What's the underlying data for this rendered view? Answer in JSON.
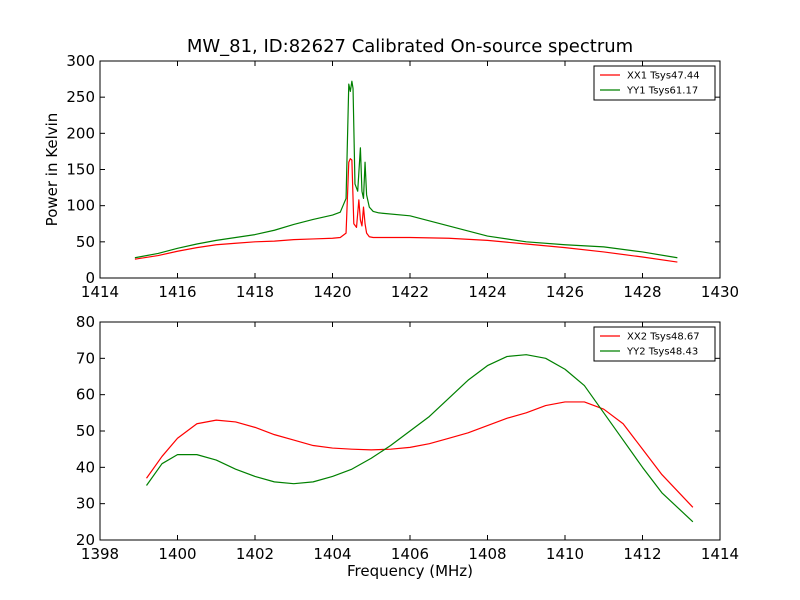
{
  "title": "MW_81, ID:82627 Calibrated On-source spectrum",
  "colors": {
    "xx": "#ff0000",
    "yy": "#008000",
    "axis": "#000000",
    "background": "#ffffff"
  },
  "chart_data": [
    {
      "type": "line",
      "title": "MW_81, ID:82627 Calibrated On-source spectrum",
      "xlabel": "",
      "ylabel": "Power in Kelvin",
      "xlim": [
        1414,
        1430
      ],
      "ylim": [
        0,
        300
      ],
      "xticks": [
        1414,
        1416,
        1418,
        1420,
        1422,
        1424,
        1426,
        1428,
        1430
      ],
      "yticks": [
        0,
        50,
        100,
        150,
        200,
        250,
        300
      ],
      "grid": false,
      "legend": "top-right",
      "series": [
        {
          "name": "XX1 Tsys47.44",
          "color": "#ff0000",
          "x": [
            1414.9,
            1415.5,
            1416,
            1416.5,
            1417,
            1417.5,
            1418,
            1418.5,
            1419,
            1419.5,
            1420,
            1420.2,
            1420.35,
            1420.42,
            1420.46,
            1420.5,
            1420.55,
            1420.62,
            1420.68,
            1420.72,
            1420.76,
            1420.8,
            1420.84,
            1420.88,
            1420.95,
            1421.05,
            1421.2,
            1422,
            1423,
            1424,
            1425,
            1426,
            1427,
            1428,
            1428.9
          ],
          "y": [
            26,
            31,
            37,
            42,
            46,
            48,
            50,
            51,
            53,
            54,
            55,
            56,
            62,
            160,
            165,
            163,
            75,
            70,
            108,
            80,
            72,
            98,
            75,
            62,
            57,
            56,
            56,
            56,
            55,
            52,
            47,
            42,
            36,
            29,
            22
          ]
        },
        {
          "name": "YY1 Tsys61.17",
          "color": "#008000",
          "x": [
            1414.9,
            1415.5,
            1416,
            1416.5,
            1417,
            1417.5,
            1418,
            1418.5,
            1419,
            1419.5,
            1420,
            1420.2,
            1420.35,
            1420.42,
            1420.46,
            1420.5,
            1420.53,
            1420.58,
            1420.65,
            1420.72,
            1420.76,
            1420.8,
            1420.84,
            1420.88,
            1420.95,
            1421.05,
            1421.2,
            1422,
            1423,
            1424,
            1425,
            1426,
            1427,
            1428,
            1428.9
          ],
          "y": [
            28,
            34,
            41,
            47,
            52,
            56,
            60,
            66,
            74,
            81,
            87,
            91,
            110,
            268,
            258,
            272,
            262,
            130,
            120,
            180,
            120,
            110,
            160,
            115,
            98,
            92,
            90,
            86,
            72,
            58,
            50,
            46,
            43,
            36,
            28
          ]
        }
      ]
    },
    {
      "type": "line",
      "title": "",
      "xlabel": "Frequency (MHz)",
      "ylabel": "",
      "xlim": [
        1398,
        1414
      ],
      "ylim": [
        20,
        80
      ],
      "xticks": [
        1398,
        1400,
        1402,
        1404,
        1406,
        1408,
        1410,
        1412,
        1414
      ],
      "yticks": [
        20,
        30,
        40,
        50,
        60,
        70,
        80
      ],
      "grid": false,
      "legend": "top-right",
      "series": [
        {
          "name": "XX2 Tsys48.67",
          "color": "#ff0000",
          "x": [
            1399.2,
            1399.6,
            1400,
            1400.5,
            1401,
            1401.5,
            1402,
            1402.5,
            1403,
            1403.5,
            1404,
            1404.5,
            1405,
            1405.5,
            1406,
            1406.5,
            1407,
            1407.5,
            1408,
            1408.5,
            1409,
            1409.5,
            1410,
            1410.5,
            1411,
            1411.5,
            1412,
            1412.5,
            1413.3
          ],
          "y": [
            37,
            43,
            48,
            52,
            53,
            52.5,
            51,
            49,
            47.5,
            46,
            45.3,
            45,
            44.8,
            45,
            45.5,
            46.5,
            48,
            49.5,
            51.5,
            53.5,
            55,
            57,
            58,
            58,
            56,
            52,
            45,
            38,
            29
          ]
        },
        {
          "name": "YY2 Tsys48.43",
          "color": "#008000",
          "x": [
            1399.2,
            1399.6,
            1400,
            1400.5,
            1401,
            1401.5,
            1402,
            1402.5,
            1403,
            1403.5,
            1404,
            1404.5,
            1405,
            1405.5,
            1406,
            1406.5,
            1407,
            1407.5,
            1408,
            1408.5,
            1409,
            1409.5,
            1410,
            1410.5,
            1411,
            1411.5,
            1412,
            1412.5,
            1413.3
          ],
          "y": [
            35,
            41,
            43.5,
            43.5,
            42,
            39.5,
            37.5,
            36,
            35.5,
            36,
            37.5,
            39.5,
            42.5,
            46,
            50,
            54,
            59,
            64,
            68,
            70.5,
            71,
            70,
            67,
            62.5,
            55,
            47.5,
            40,
            33,
            25
          ]
        }
      ]
    }
  ]
}
